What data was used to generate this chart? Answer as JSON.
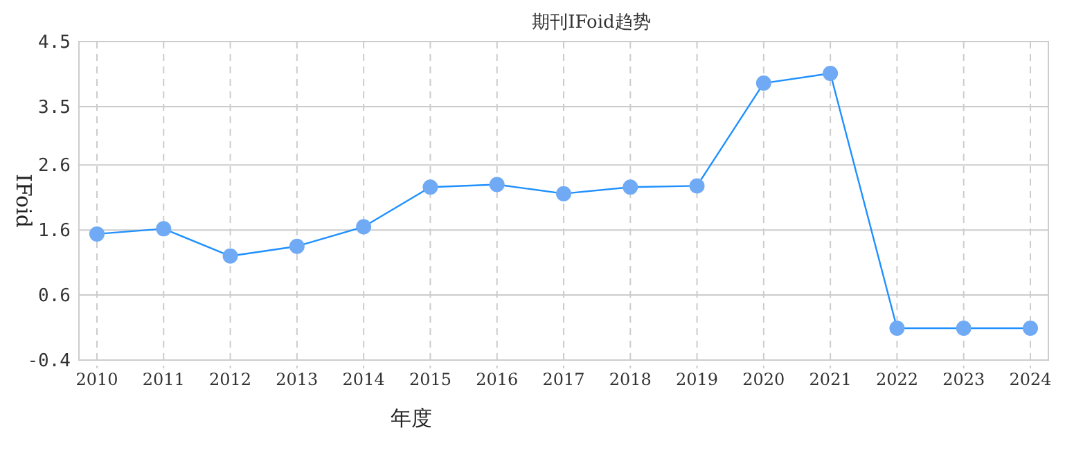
{
  "chart_data": {
    "type": "line",
    "title": "期刊IFoid趋势",
    "xlabel": "年度",
    "ylabel": "IFoid",
    "categories": [
      "2010",
      "2011",
      "2012",
      "2013",
      "2014",
      "2015",
      "2016",
      "2017",
      "2018",
      "2019",
      "2020",
      "2021",
      "2022",
      "2023",
      "2024"
    ],
    "series": [
      {
        "color": "#1e90ff",
        "values": [
          1.54,
          1.62,
          1.2,
          1.35,
          1.65,
          2.26,
          2.3,
          2.16,
          2.26,
          2.28,
          3.86,
          4.01,
          0.09,
          0.09,
          0.09
        ]
      }
    ],
    "ylim": [
      -0.4,
      4.5
    ],
    "yticks": [
      -0.4,
      0.6,
      1.6,
      2.6,
      3.5,
      4.5
    ],
    "grid": true,
    "marker": "circle",
    "line_style": "solid"
  }
}
